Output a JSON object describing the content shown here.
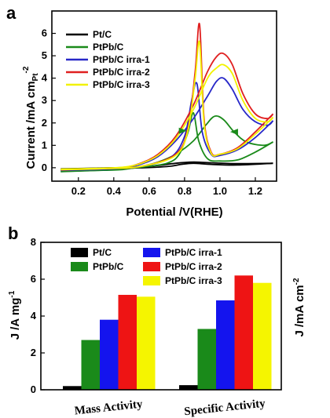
{
  "chart_data": [
    {
      "type": "line",
      "panel_label": "a",
      "xlabel": "Potential /V(RHE)",
      "ylabel": "Current  /mA cm",
      "ylabel_sub": "Pt",
      "ylabel_sup": "-2",
      "xlim": [
        0.05,
        1.32
      ],
      "ylim": [
        -0.6,
        7.0
      ],
      "xticks": [
        0.2,
        0.4,
        0.6,
        0.8,
        1.0,
        1.2
      ],
      "yticks": [
        0,
        1,
        2,
        3,
        4,
        5,
        6
      ],
      "legend_position": "top-left",
      "series": [
        {
          "name": "Pt/C",
          "color": "#000000",
          "forward": [
            [
              0.1,
              -0.05
            ],
            [
              0.3,
              -0.02
            ],
            [
              0.5,
              0.02
            ],
            [
              0.65,
              0.1
            ],
            [
              0.75,
              0.2
            ],
            [
              0.85,
              0.25
            ],
            [
              0.95,
              0.22
            ],
            [
              1.1,
              0.18
            ],
            [
              1.3,
              0.2
            ]
          ],
          "backward": [
            [
              1.3,
              0.2
            ],
            [
              1.1,
              0.12
            ],
            [
              0.95,
              0.15
            ],
            [
              0.85,
              0.2
            ],
            [
              0.78,
              0.15
            ],
            [
              0.7,
              0.05
            ],
            [
              0.5,
              -0.02
            ],
            [
              0.3,
              -0.05
            ],
            [
              0.1,
              -0.08
            ]
          ]
        },
        {
          "name": "PtPb/C",
          "color": "#1a8a1a",
          "forward": [
            [
              0.1,
              -0.15
            ],
            [
              0.3,
              -0.12
            ],
            [
              0.45,
              -0.08
            ],
            [
              0.55,
              0.05
            ],
            [
              0.65,
              0.25
            ],
            [
              0.75,
              0.6
            ],
            [
              0.85,
              1.2
            ],
            [
              0.92,
              1.9
            ],
            [
              0.97,
              2.3
            ],
            [
              1.02,
              2.15
            ],
            [
              1.08,
              1.6
            ],
            [
              1.15,
              1.15
            ],
            [
              1.25,
              1.0
            ],
            [
              1.3,
              1.15
            ]
          ],
          "backward": [
            [
              1.3,
              1.15
            ],
            [
              1.2,
              0.7
            ],
            [
              1.1,
              0.35
            ],
            [
              1.0,
              0.3
            ],
            [
              0.93,
              0.4
            ],
            [
              0.88,
              1.2
            ],
            [
              0.85,
              2.45
            ],
            [
              0.82,
              1.6
            ],
            [
              0.77,
              0.6
            ],
            [
              0.7,
              0.2
            ],
            [
              0.55,
              0.02
            ],
            [
              0.35,
              -0.1
            ],
            [
              0.1,
              -0.18
            ]
          ]
        },
        {
          "name": "PtPb/C irra-1",
          "color": "#2828c8",
          "forward": [
            [
              0.1,
              -0.1
            ],
            [
              0.3,
              -0.08
            ],
            [
              0.45,
              -0.02
            ],
            [
              0.55,
              0.15
            ],
            [
              0.65,
              0.5
            ],
            [
              0.75,
              1.2
            ],
            [
              0.85,
              2.2
            ],
            [
              0.93,
              3.2
            ],
            [
              0.98,
              3.85
            ],
            [
              1.02,
              4.0
            ],
            [
              1.07,
              3.5
            ],
            [
              1.13,
              2.6
            ],
            [
              1.2,
              2.05
            ],
            [
              1.27,
              1.9
            ],
            [
              1.3,
              2.1
            ]
          ],
          "backward": [
            [
              1.3,
              2.1
            ],
            [
              1.2,
              1.35
            ],
            [
              1.1,
              0.8
            ],
            [
              1.0,
              0.55
            ],
            [
              0.95,
              0.6
            ],
            [
              0.9,
              1.6
            ],
            [
              0.87,
              3.75
            ],
            [
              0.84,
              3.0
            ],
            [
              0.8,
              1.4
            ],
            [
              0.72,
              0.45
            ],
            [
              0.55,
              0.05
            ],
            [
              0.35,
              -0.05
            ],
            [
              0.1,
              -0.12
            ]
          ]
        },
        {
          "name": "PtPb/C irra-2",
          "color": "#e02020",
          "forward": [
            [
              0.1,
              -0.08
            ],
            [
              0.3,
              -0.05
            ],
            [
              0.45,
              0.0
            ],
            [
              0.55,
              0.2
            ],
            [
              0.65,
              0.6
            ],
            [
              0.75,
              1.4
            ],
            [
              0.85,
              2.8
            ],
            [
              0.93,
              4.3
            ],
            [
              0.98,
              4.95
            ],
            [
              1.02,
              5.1
            ],
            [
              1.07,
              4.6
            ],
            [
              1.13,
              3.3
            ],
            [
              1.2,
              2.4
            ],
            [
              1.27,
              2.2
            ],
            [
              1.3,
              2.4
            ]
          ],
          "backward": [
            [
              1.3,
              2.4
            ],
            [
              1.2,
              1.6
            ],
            [
              1.1,
              0.9
            ],
            [
              1.0,
              0.6
            ],
            [
              0.95,
              0.7
            ],
            [
              0.91,
              2.2
            ],
            [
              0.885,
              6.4
            ],
            [
              0.86,
              4.3
            ],
            [
              0.82,
              1.8
            ],
            [
              0.75,
              0.6
            ],
            [
              0.55,
              0.05
            ],
            [
              0.35,
              -0.03
            ],
            [
              0.1,
              -0.1
            ]
          ]
        },
        {
          "name": "PtPb/C irra-3",
          "color": "#f2f200",
          "forward": [
            [
              0.1,
              -0.06
            ],
            [
              0.3,
              -0.03
            ],
            [
              0.45,
              0.02
            ],
            [
              0.55,
              0.18
            ],
            [
              0.65,
              0.55
            ],
            [
              0.75,
              1.3
            ],
            [
              0.85,
              2.6
            ],
            [
              0.93,
              4.0
            ],
            [
              0.98,
              4.45
            ],
            [
              1.02,
              4.6
            ],
            [
              1.07,
              4.2
            ],
            [
              1.13,
              3.0
            ],
            [
              1.2,
              2.2
            ],
            [
              1.27,
              2.05
            ],
            [
              1.3,
              2.25
            ]
          ],
          "backward": [
            [
              1.3,
              2.25
            ],
            [
              1.2,
              1.5
            ],
            [
              1.1,
              0.85
            ],
            [
              1.0,
              0.6
            ],
            [
              0.95,
              0.65
            ],
            [
              0.91,
              2.0
            ],
            [
              0.885,
              5.6
            ],
            [
              0.86,
              4.0
            ],
            [
              0.82,
              1.7
            ],
            [
              0.75,
              0.55
            ],
            [
              0.55,
              0.05
            ],
            [
              0.35,
              -0.04
            ],
            [
              0.1,
              -0.09
            ]
          ]
        }
      ]
    },
    {
      "type": "bar",
      "panel_label": "b",
      "categories": [
        "Mass Activity",
        "Specific Activity"
      ],
      "ylabel": "J /A mg",
      "ylabel_sup": "-1",
      "ylabel_right": "J /mA cm",
      "ylabel_right_sup": "-2",
      "ylim": [
        0,
        8
      ],
      "yticks": [
        0,
        2,
        4,
        6,
        8
      ],
      "legend_position": "top",
      "series": [
        {
          "name": "Pt/C",
          "color": "#000000",
          "values": [
            0.2,
            0.25
          ]
        },
        {
          "name": "PtPb/C",
          "color": "#1a8a1a",
          "values": [
            2.7,
            3.3
          ]
        },
        {
          "name": "PtPb/C irra-1",
          "color": "#1414ee",
          "values": [
            3.8,
            4.85
          ]
        },
        {
          "name": "PtPb/C irra-2",
          "color": "#ee1414",
          "values": [
            5.15,
            6.2
          ]
        },
        {
          "name": "PtPb/C irra-3",
          "color": "#f5f500",
          "values": [
            5.05,
            5.8
          ]
        }
      ]
    }
  ]
}
